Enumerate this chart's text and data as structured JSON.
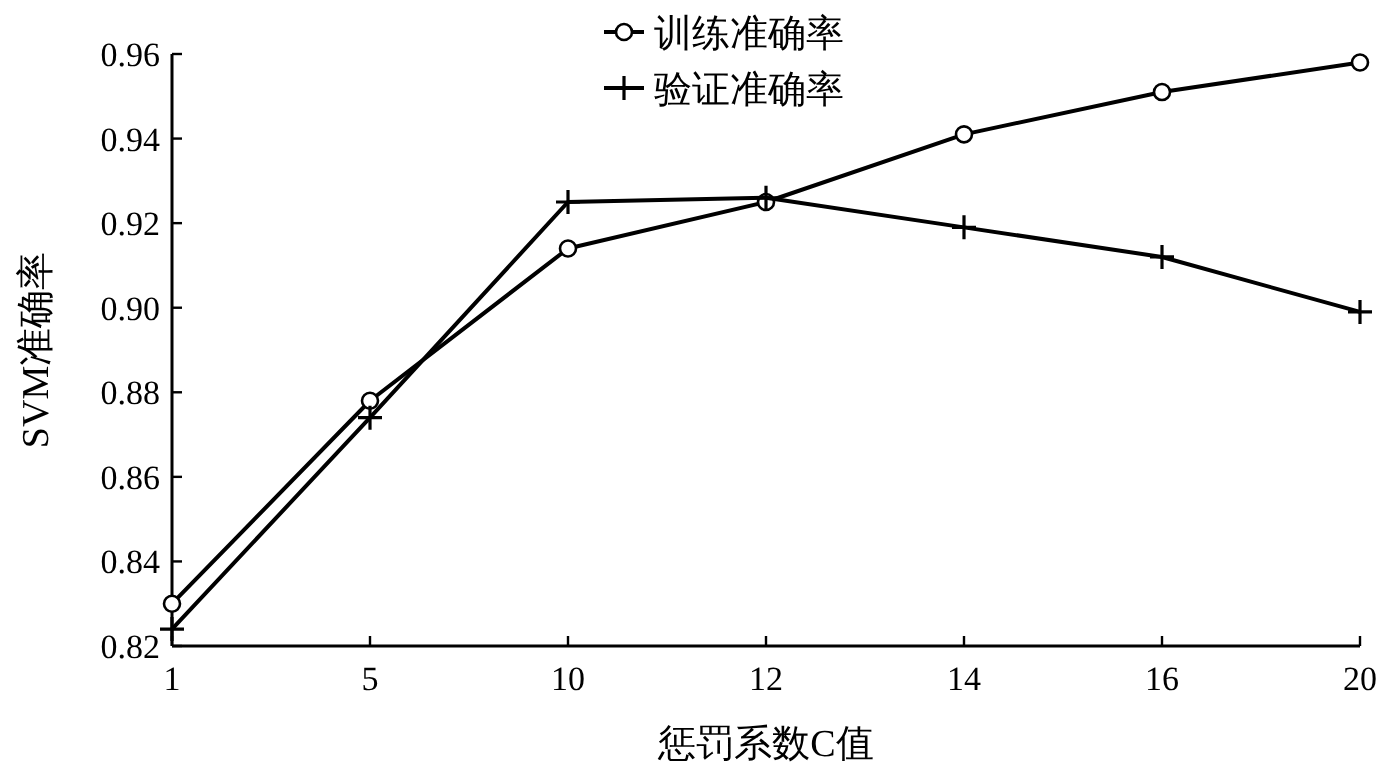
{
  "chart_data": {
    "type": "line",
    "xlabel": "惩罚系数C值",
    "ylabel": "SVM准确率",
    "categories": [
      "1",
      "5",
      "10",
      "12",
      "14",
      "16",
      "20"
    ],
    "series": [
      {
        "name": "训练准确率",
        "color": "#000000",
        "marker": "circle",
        "values": [
          0.83,
          0.878,
          0.914,
          0.925,
          0.941,
          0.951,
          0.958
        ]
      },
      {
        "name": "验证准确率",
        "color": "#000000",
        "marker": "cross",
        "values": [
          0.824,
          0.874,
          0.925,
          0.926,
          0.919,
          0.912,
          0.899
        ]
      }
    ],
    "ylim": [
      0.82,
      0.96
    ],
    "yticks": [
      {
        "value": 0.82,
        "label": "0.82"
      },
      {
        "value": 0.84,
        "label": "0.84"
      },
      {
        "value": 0.86,
        "label": "0.86"
      },
      {
        "value": 0.88,
        "label": "0.88"
      },
      {
        "value": 0.9,
        "label": "0.90"
      },
      {
        "value": 0.92,
        "label": "0.92"
      },
      {
        "value": 0.94,
        "label": "0.94"
      },
      {
        "value": 0.96,
        "label": "0.96"
      }
    ],
    "legend": "top",
    "line_style": "solid"
  }
}
